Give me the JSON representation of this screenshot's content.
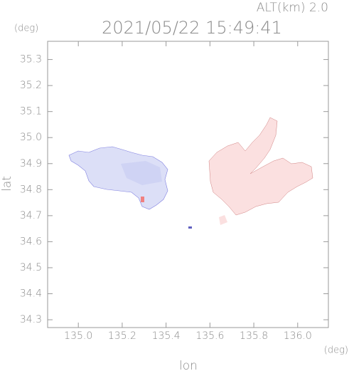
{
  "chart_data": {
    "type": "map",
    "title": "2021/05/22 15:49:41",
    "subtitle": "ALT(km) 2.0",
    "x_label": "lon",
    "x_unit": "(deg)",
    "y_label": "lat",
    "y_unit": "(deg)",
    "xlim": [
      134.86,
      136.14
    ],
    "xticks": [
      {
        "value": 135,
        "label": "135.0"
      },
      {
        "value": 135.2,
        "label": "135.2"
      },
      {
        "value": 135.4,
        "label": "135.4"
      },
      {
        "value": 135.6,
        "label": "135.6"
      },
      {
        "value": 135.8,
        "label": "135.8"
      },
      {
        "value": 136,
        "label": "136.0"
      }
    ],
    "ylim": [
      34.27,
      35.37
    ],
    "yticks": [
      {
        "value": 34.3,
        "label": "34.3"
      },
      {
        "value": 34.4,
        "label": "34.4"
      },
      {
        "value": 34.5,
        "label": "34.5"
      },
      {
        "value": 34.6,
        "label": "34.6"
      },
      {
        "value": 34.7,
        "label": "34.7"
      },
      {
        "value": 34.8,
        "label": "34.8"
      },
      {
        "value": 34.9,
        "label": "34.9"
      },
      {
        "value": 35,
        "label": "35.0"
      },
      {
        "value": 35.1,
        "label": "35.1"
      },
      {
        "value": 35.2,
        "label": "35.2"
      },
      {
        "value": 35.3,
        "label": "35.3"
      }
    ]
  }
}
